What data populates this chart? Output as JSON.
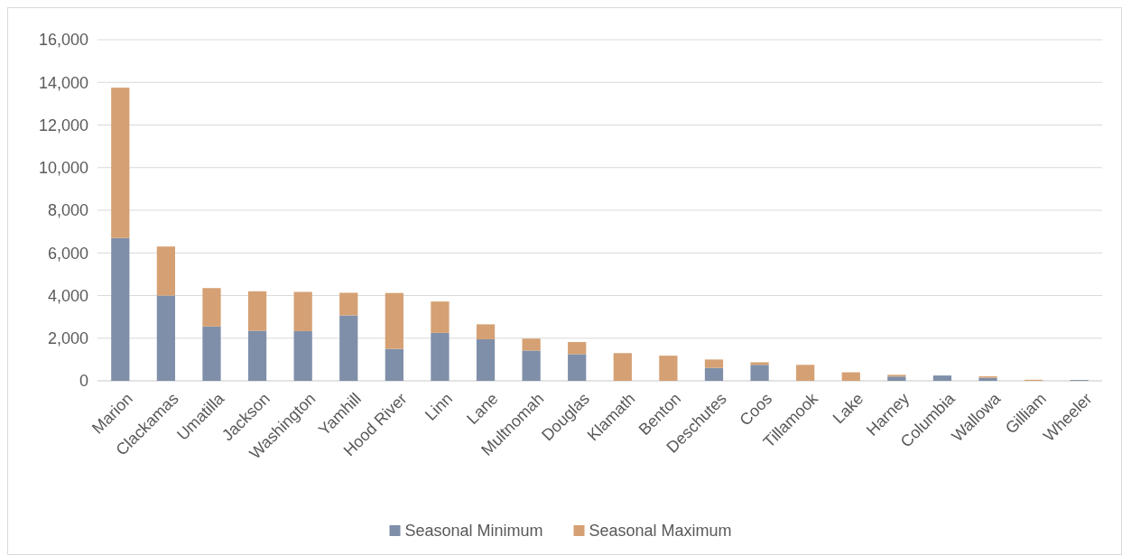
{
  "chart_data": {
    "type": "bar",
    "stacked": true,
    "categories": [
      "Marion",
      "Clackamas",
      "Umatilla",
      "Jackson",
      "Washington",
      "Yamhill",
      "Hood River",
      "Linn",
      "Lane",
      "Multnomah",
      "Douglas",
      "Klamath",
      "Benton",
      "Deschutes",
      "Coos",
      "Tillamook",
      "Lake",
      "Harney",
      "Columbia",
      "Wallowa",
      "Gilliam",
      "Wheeler"
    ],
    "series": [
      {
        "name": "Seasonal Minimum",
        "color": "#7f8fa9",
        "values": [
          6700,
          4000,
          2550,
          2350,
          2330,
          3070,
          1500,
          2250,
          1950,
          1420,
          1250,
          0,
          0,
          610,
          750,
          0,
          0,
          200,
          250,
          140,
          0,
          40
        ]
      },
      {
        "name": "Seasonal Maximum",
        "color": "#d5a073",
        "values": [
          7050,
          2300,
          1800,
          1850,
          1840,
          1060,
          2620,
          1470,
          700,
          560,
          570,
          1300,
          1180,
          390,
          120,
          750,
          400,
          80,
          null,
          70,
          50,
          0
        ]
      }
    ],
    "ylim": [
      0,
      16000
    ],
    "yticks": [
      {
        "value": 0,
        "label": "0"
      },
      {
        "value": 2000,
        "label": "2,000"
      },
      {
        "value": 4000,
        "label": "4,000"
      },
      {
        "value": 6000,
        "label": "6,000"
      },
      {
        "value": 8000,
        "label": "8,000"
      },
      {
        "value": 10000,
        "label": "10,000"
      },
      {
        "value": 12000,
        "label": "12,000"
      },
      {
        "value": 14000,
        "label": "14,000"
      },
      {
        "value": 16000,
        "label": "16,000"
      }
    ],
    "grid": "y",
    "legend": "bottom"
  }
}
